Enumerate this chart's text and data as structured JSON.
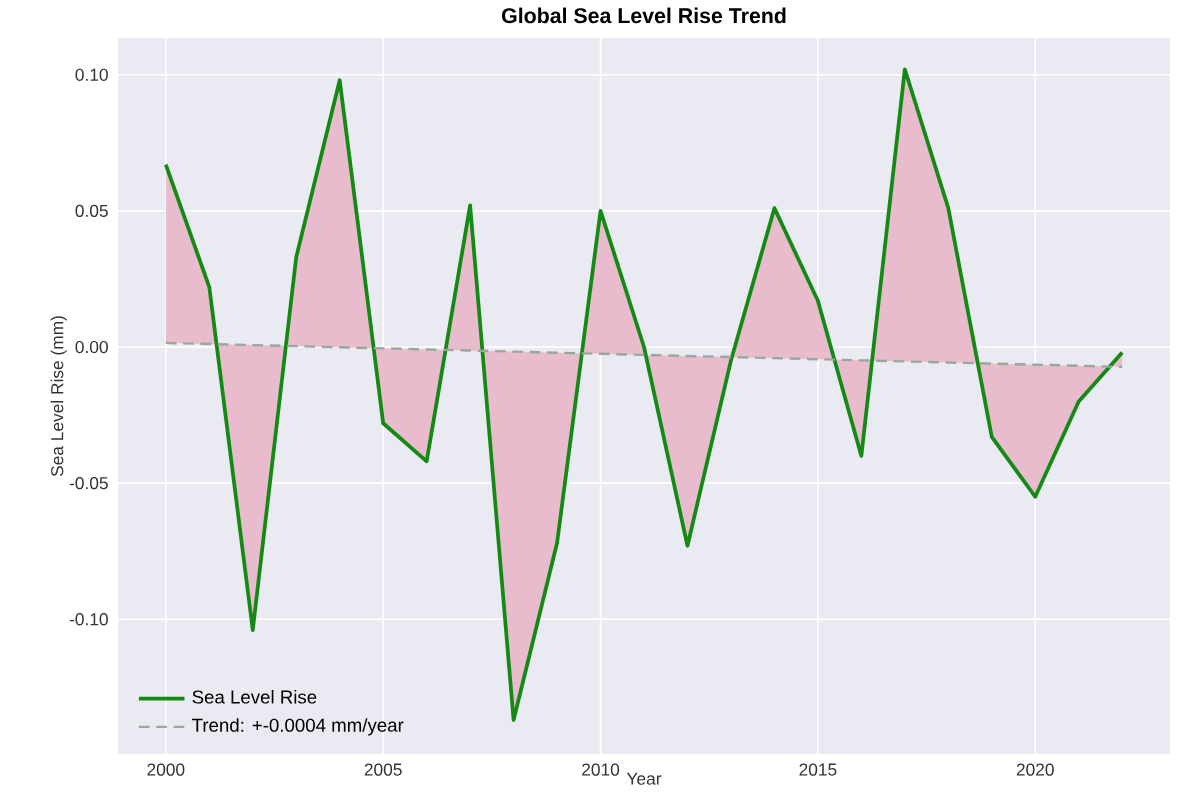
{
  "chart_data": {
    "type": "line",
    "title": "Global Sea Level Rise Trend",
    "xlabel": "Year",
    "ylabel": "Sea Level Rise (mm)",
    "x": [
      2000,
      2001,
      2002,
      2003,
      2004,
      2005,
      2006,
      2007,
      2008,
      2009,
      2010,
      2011,
      2012,
      2013,
      2014,
      2015,
      2016,
      2017,
      2018,
      2019,
      2020,
      2021,
      2022
    ],
    "series": [
      {
        "name": "Sea Level Rise",
        "color": "#138a13",
        "values": [
          0.067,
          0.022,
          -0.104,
          0.033,
          0.098,
          -0.028,
          -0.042,
          0.052,
          -0.137,
          -0.072,
          0.05,
          0.0,
          -0.073,
          -0.005,
          0.051,
          0.017,
          -0.04,
          0.102,
          0.051,
          -0.033,
          -0.055,
          -0.02,
          -0.002
        ],
        "lower": [
          0.0015,
          0.0011,
          0.0007,
          0.0003,
          -0.0001,
          -0.0005,
          -0.0009,
          -0.0013,
          -0.0017,
          -0.0021,
          -0.0025,
          -0.0029,
          -0.0033,
          -0.0037,
          -0.0041,
          -0.0045,
          -0.0049,
          -0.0053,
          -0.0057,
          -0.0061,
          -0.0065,
          -0.0069,
          -0.0073
        ],
        "upper": [
          0.067,
          0.022,
          -0.104,
          0.033,
          0.098,
          -0.028,
          -0.042,
          0.052,
          -0.137,
          -0.072,
          0.05,
          0.0,
          -0.073,
          -0.005,
          0.051,
          0.017,
          -0.04,
          0.102,
          0.051,
          -0.033,
          -0.055,
          -0.02,
          -0.002
        ]
      },
      {
        "name": "Trend: +-0.0004 mm/year",
        "color": "#9aa89a",
        "line_style": "dashed",
        "values": [
          0.0015,
          0.0011,
          0.0007,
          0.0003,
          -0.0001,
          -0.0005,
          -0.0009,
          -0.0013,
          -0.0017,
          -0.0021,
          -0.0025,
          -0.0029,
          -0.0033,
          -0.0037,
          -0.0041,
          -0.0045,
          -0.0049,
          -0.0053,
          -0.0057,
          -0.0061,
          -0.0065,
          -0.0069,
          -0.0073
        ]
      }
    ],
    "xlim": [
      1998.9,
      2023.1
    ],
    "ylim": [
      -0.1495,
      0.1135
    ],
    "xticks": [
      2000,
      2005,
      2010,
      2015,
      2020
    ],
    "yticks": [
      {
        "value": -0.1,
        "label": "-0.10"
      },
      {
        "value": -0.05,
        "label": "-0.05"
      },
      {
        "value": 0,
        "label": "0.00"
      },
      {
        "value": 0.05,
        "label": "0.05"
      },
      {
        "value": 0.1,
        "label": "0.10"
      }
    ],
    "grid": true,
    "legend": "bottom left",
    "marker": "none",
    "line_style": "solid"
  }
}
